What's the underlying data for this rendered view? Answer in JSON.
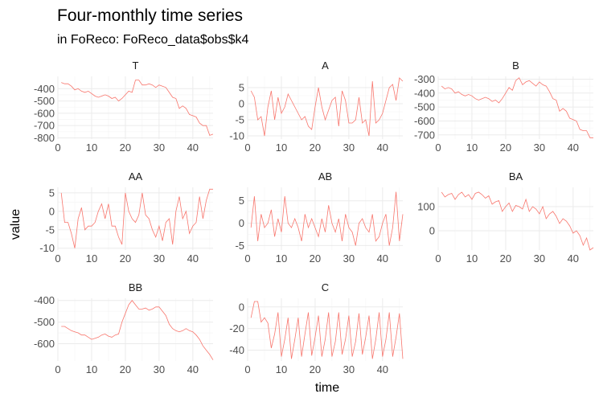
{
  "chart_data": {
    "type": "line",
    "title": "Four-monthly time series",
    "subtitle": "in FoReco: FoReco_data$obs$k4",
    "xlabel": "time",
    "ylabel": "value",
    "series_color": "#F8766D",
    "x_ticks": [
      0,
      10,
      20,
      30,
      40
    ],
    "x_range": [
      0,
      46
    ],
    "panels": [
      {
        "name": "T",
        "ylim": [
          -810,
          -300
        ],
        "y_ticks": [
          -400,
          -500,
          -600,
          -700,
          -800
        ],
        "values": [
          -350,
          -360,
          -360,
          -380,
          -410,
          -400,
          -420,
          -430,
          -420,
          -440,
          -460,
          -470,
          -460,
          -450,
          -460,
          -480,
          -470,
          -500,
          -480,
          -450,
          -420,
          -430,
          -330,
          -330,
          -370,
          -370,
          -360,
          -370,
          -390,
          -370,
          -380,
          -390,
          -430,
          -470,
          -480,
          -560,
          -540,
          -560,
          -610,
          -620,
          -630,
          -680,
          -700,
          -700,
          -780,
          -770
        ]
      },
      {
        "name": "A",
        "ylim": [
          -11,
          8.5
        ],
        "y_ticks": [
          5,
          0,
          -5,
          -10
        ],
        "values": [
          4,
          2,
          -5,
          -4,
          -10,
          -1,
          4,
          -5,
          2,
          -3,
          -1,
          3,
          1,
          -1,
          -3,
          -5,
          -4,
          -7,
          -8,
          -1,
          5,
          -1,
          -5,
          -2,
          1,
          2,
          -7,
          4,
          1,
          -6,
          -6,
          -5,
          2,
          -6,
          -5,
          -10,
          7,
          -6,
          -5,
          -3,
          1,
          5,
          6,
          1,
          8,
          7
        ]
      },
      {
        "name": "B",
        "ylim": [
          -730,
          -280
        ],
        "y_ticks": [
          -300,
          -400,
          -500,
          -600,
          -700
        ],
        "values": [
          -350,
          -370,
          -360,
          -370,
          -400,
          -390,
          -410,
          -420,
          -410,
          -420,
          -440,
          -450,
          -440,
          -430,
          -440,
          -460,
          -450,
          -470,
          -440,
          -400,
          -360,
          -380,
          -310,
          -290,
          -340,
          -320,
          -310,
          -330,
          -350,
          -320,
          -340,
          -350,
          -390,
          -440,
          -450,
          -530,
          -510,
          -530,
          -580,
          -590,
          -600,
          -660,
          -670,
          -670,
          -720,
          -720
        ]
      },
      {
        "name": "AA",
        "ylim": [
          -10.5,
          6.5
        ],
        "y_ticks": [
          5,
          0,
          -5,
          -10
        ],
        "values": [
          5,
          -3,
          -3,
          -6,
          -10,
          -2,
          1,
          -5,
          -4,
          -4,
          -3,
          0,
          2,
          -2,
          2,
          -4,
          -4,
          -7,
          -9,
          5,
          0,
          -2,
          -3,
          -1,
          5,
          -1,
          -2,
          -5,
          -7,
          -4,
          -8,
          -3,
          -2,
          -9,
          0,
          4,
          -2,
          0,
          -6,
          -4,
          -3,
          4,
          -2,
          3,
          6,
          6
        ]
      },
      {
        "name": "AB",
        "ylim": [
          -6,
          8
        ],
        "y_ticks": [
          5,
          0,
          -5
        ],
        "values": [
          -1,
          6,
          -4,
          2,
          -1,
          0,
          3,
          -3,
          1,
          -2,
          6,
          0,
          -1,
          1,
          -1,
          -4,
          2,
          -1,
          1,
          -1,
          -3,
          1,
          -2,
          4,
          0,
          -2,
          1,
          -4,
          2,
          -1,
          -2,
          -5,
          0,
          1,
          -1,
          -2,
          2,
          -4,
          -3,
          0,
          2,
          -5,
          -1,
          7,
          -4,
          2
        ]
      },
      {
        "name": "BA",
        "ylim": [
          -80,
          180
        ],
        "y_ticks": [
          100,
          0
        ],
        "values": [
          160,
          140,
          150,
          155,
          130,
          150,
          160,
          140,
          150,
          130,
          155,
          160,
          150,
          135,
          145,
          110,
          120,
          125,
          80,
          100,
          115,
          80,
          105,
          100,
          90,
          130,
          80,
          100,
          90,
          70,
          100,
          50,
          70,
          80,
          60,
          30,
          50,
          40,
          20,
          -10,
          0,
          -20,
          -60,
          -30,
          -80,
          -70
        ]
      },
      {
        "name": "BB",
        "ylim": [
          -680,
          -390
        ],
        "y_ticks": [
          -400,
          -500,
          -600
        ],
        "values": [
          -520,
          -520,
          -530,
          -540,
          -545,
          -550,
          -560,
          -560,
          -570,
          -580,
          -575,
          -570,
          -560,
          -555,
          -565,
          -570,
          -560,
          -555,
          -500,
          -460,
          -420,
          -400,
          -420,
          -440,
          -440,
          -435,
          -445,
          -440,
          -430,
          -430,
          -450,
          -470,
          -510,
          -530,
          -540,
          -545,
          -540,
          -530,
          -540,
          -545,
          -560,
          -580,
          -610,
          -630,
          -650,
          -675
        ]
      },
      {
        "name": "C",
        "ylim": [
          -50,
          8
        ],
        "y_ticks": [
          0,
          -20,
          -40
        ],
        "values": [
          -10,
          5,
          5,
          -14,
          -10,
          -15,
          -38,
          -25,
          -5,
          -46,
          -30,
          -10,
          -48,
          -30,
          -10,
          -46,
          -25,
          -5,
          -45,
          -28,
          -8,
          -46,
          -30,
          -5,
          -46,
          -32,
          -5,
          -44,
          -30,
          -8,
          -46,
          -32,
          -6,
          -44,
          -28,
          -8,
          -48,
          -30,
          -5,
          -46,
          -30,
          -5,
          -46,
          -28,
          -6,
          -48
        ]
      }
    ]
  }
}
